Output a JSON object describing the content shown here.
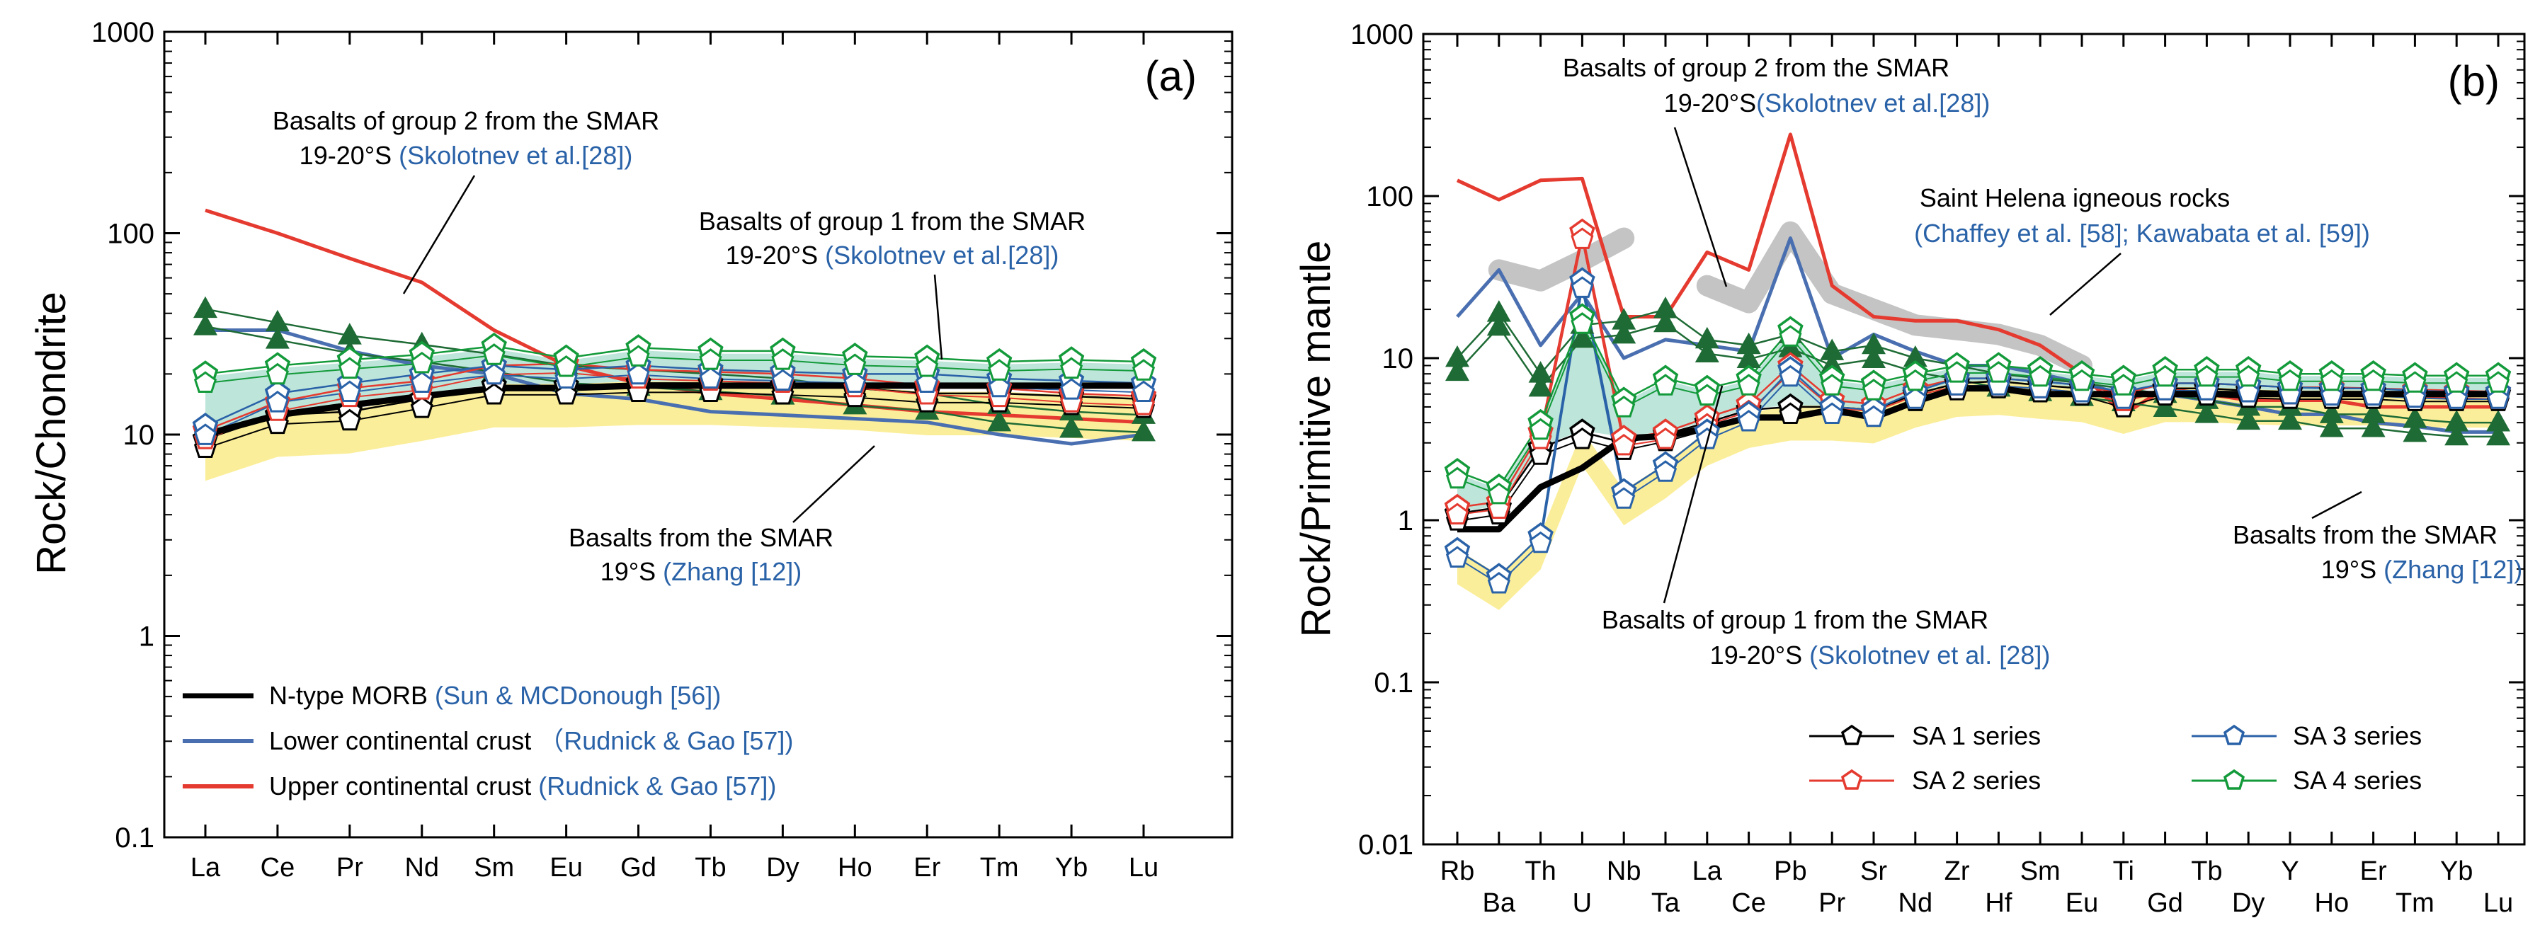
{
  "colors": {
    "black": "#000000",
    "blue": "#4a6fb0",
    "red": "#e53a2f",
    "green": "#139a3a",
    "darkgreen": "#1e6b35",
    "annot_blue": "#2a62a8",
    "fill_yellow": "#fbee9a",
    "fill_cyan": "#a8dccd",
    "fill_gray": "#c4c4c4"
  },
  "panel_a": {
    "label": "(a)",
    "ylabel": "Rock/Chondrite",
    "yticks": [
      "0.1",
      "1",
      "10",
      "100",
      "1000"
    ],
    "categories": [
      "La",
      "Ce",
      "Pr",
      "Nd",
      "Sm",
      "Eu",
      "Gd",
      "Tb",
      "Dy",
      "Ho",
      "Er",
      "Tm",
      "Yb",
      "Lu"
    ],
    "annotations": [
      {
        "l1": "Basalts of group 2 from the SMAR",
        "l2a": "19-20°S ",
        "l2b": "(Skolotnev et al.[28])"
      },
      {
        "l1": "Basalts of group 1 from the SMAR",
        "l2a": "19-20°S ",
        "l2b": "(Skolotnev et al.[28])"
      },
      {
        "l1": "Basalts from the SMAR",
        "l2a": "19°S ",
        "l2b": "(Zhang [12])"
      }
    ],
    "legend": [
      {
        "name": "N-type MORB ",
        "ref": "(Sun & MCDonough [56])"
      },
      {
        "name": "Lower continental crust ",
        "ref": "（Rudnick & Gao [57])"
      },
      {
        "name": "Upper continental crust ",
        "ref": "(Rudnick & Gao [57])"
      }
    ]
  },
  "panel_b": {
    "label": "(b)",
    "ylabel": "Rock/Primitive mantle",
    "yticks": [
      "0.01",
      "0.1",
      "1",
      "10",
      "100",
      "1000"
    ],
    "categories": [
      "Rb",
      "Ba",
      "Th",
      "U",
      "Nb",
      "Ta",
      "La",
      "Ce",
      "Pb",
      "Pr",
      "Sr",
      "Nd",
      "Zr",
      "Hf",
      "Sm",
      "Eu",
      "Ti",
      "Gd",
      "Tb",
      "Dy",
      "Y",
      "Ho",
      "Er",
      "Tm",
      "Yb",
      "Lu"
    ],
    "annotations": [
      {
        "l1": "Basalts of group 2 from the SMAR",
        "l2a": "19-20°S",
        "l2b": "(Skolotnev et al.[28])"
      },
      {
        "l1": "Saint Helena igneous rocks",
        "l2a": "",
        "l2b": "(Chaffey et al. [58]; Kawabata et al. [59])"
      },
      {
        "l1": "Basalts of group 1 from the SMAR",
        "l2a": "19-20°S ",
        "l2b": "(Skolotnev et al. [28])"
      },
      {
        "l1": "Basalts from the SMAR",
        "l2a": "19°S ",
        "l2b": "(Zhang [12])"
      }
    ],
    "legend": [
      "SA 1 series",
      "SA 2 series",
      "SA 3 series",
      "SA 4 series"
    ]
  },
  "chart_data": [
    {
      "type": "line",
      "title": "(a)",
      "xlabel": "",
      "ylabel": "Rock/Chondrite",
      "yscale": "log",
      "ylim": [
        0.1,
        1000
      ],
      "categories": [
        "La",
        "Ce",
        "Pr",
        "Nd",
        "Sm",
        "Eu",
        "Gd",
        "Tb",
        "Dy",
        "Ho",
        "Er",
        "Tm",
        "Yb",
        "Lu"
      ],
      "series": [
        {
          "name": "N-type MORB",
          "role": "reference",
          "values": [
            10,
            12.5,
            14,
            15.5,
            17,
            17,
            17.5,
            17.5,
            17.5,
            17.5,
            17.5,
            17.5,
            17.5,
            17.5
          ]
        },
        {
          "name": "Lower continental crust",
          "role": "reference",
          "values": [
            33,
            33,
            26,
            22,
            20,
            16,
            15,
            13,
            12.5,
            12,
            11.5,
            10,
            9,
            10
          ]
        },
        {
          "name": "Upper continental crust",
          "role": "reference",
          "values": [
            130,
            100,
            75,
            57,
            33,
            22,
            18,
            16,
            15,
            14,
            13,
            12.5,
            12,
            11.5
          ]
        },
        {
          "name": "Basalts of group 1 from the SMAR (green triangles)",
          "role": "reference",
          "values": [
            42,
            36,
            31,
            28,
            25,
            22,
            21,
            20,
            19,
            17,
            16,
            14,
            13,
            12.5
          ]
        },
        {
          "name": "SA 1 series",
          "values": [
            9.5,
            12.5,
            13,
            15,
            17.5,
            17.5,
            18,
            18,
            17.5,
            17,
            16,
            16,
            15.5,
            15
          ]
        },
        {
          "name": "SA 2 series",
          "values": [
            10.5,
            14.5,
            17,
            18.5,
            22,
            22.5,
            21,
            20.5,
            20,
            19,
            17.5,
            17,
            16,
            15.5
          ]
        },
        {
          "name": "SA 3 series",
          "values": [
            11,
            16,
            18,
            20,
            22,
            21,
            22,
            21,
            20.5,
            20,
            20,
            19,
            18.5,
            18
          ]
        },
        {
          "name": "SA 4 series",
          "values": [
            20,
            22,
            23.5,
            25,
            27.5,
            24,
            27,
            26,
            26,
            24.5,
            24,
            23,
            23.5,
            23
          ]
        }
      ]
    },
    {
      "type": "line",
      "title": "(b)",
      "xlabel": "",
      "ylabel": "Rock/Primitive mantle",
      "yscale": "log",
      "ylim": [
        0.01,
        1000
      ],
      "categories": [
        "Rb",
        "Ba",
        "Th",
        "U",
        "Nb",
        "Ta",
        "La",
        "Ce",
        "Pb",
        "Pr",
        "Sr",
        "Nd",
        "Zr",
        "Hf",
        "Sm",
        "Eu",
        "Ti",
        "Gd",
        "Tb",
        "Dy",
        "Y",
        "Ho",
        "Er",
        "Tm",
        "Yb",
        "Lu"
      ],
      "series": [
        {
          "name": "N-type MORB",
          "role": "reference",
          "values": [
            0.88,
            0.88,
            1.6,
            2.1,
            3.2,
            3.3,
            3.7,
            4.3,
            4.3,
            4.8,
            4.3,
            5.4,
            6.5,
            6.5,
            6,
            6,
            6,
            6,
            6,
            6,
            6,
            6,
            6,
            6,
            6,
            6
          ]
        },
        {
          "name": "Lower continental crust",
          "role": "reference",
          "values": [
            18,
            35,
            12,
            25,
            10,
            13,
            12,
            11,
            55,
            10,
            14,
            11,
            9,
            9,
            8,
            7,
            6,
            6,
            5.5,
            5,
            4.5,
            4.5,
            4,
            3.8,
            3.5,
            3.5
          ]
        },
        {
          "name": "Upper continental crust",
          "role": "reference",
          "values": [
            125,
            95,
            125,
            128,
            18,
            18,
            45,
            35,
            240,
            28,
            18,
            17,
            17,
            15,
            12,
            8,
            4.5,
            6.5,
            6,
            5.5,
            5.5,
            5.5,
            5,
            5,
            5,
            5
          ]
        },
        {
          "name": "Basalts of group 1 from the SMAR (green triangles)",
          "role": "reference",
          "values": [
            10,
            19,
            8,
            16,
            17,
            20,
            13,
            12,
            14,
            11,
            12,
            10,
            9,
            8,
            7.5,
            7,
            6.5,
            6,
            5.5,
            5,
            5,
            4.5,
            4.5,
            4.2,
            4,
            4
          ]
        },
        {
          "name": "SA 1 series",
          "values": [
            1.1,
            1.2,
            2.8,
            3.5,
            3,
            3.4,
            4,
            4.8,
            5,
            5,
            4.8,
            6,
            7,
            7.2,
            6.8,
            6.5,
            5.5,
            6.5,
            6.5,
            6.3,
            6.2,
            6.2,
            6.2,
            6,
            6,
            6
          ]
        },
        {
          "name": "SA 2 series",
          "values": [
            1.2,
            1.3,
            3.5,
            60,
            3.2,
            3.5,
            4.3,
            5.2,
            9,
            5.5,
            5.2,
            6.5,
            7.5,
            7.5,
            7.2,
            6.8,
            6,
            7,
            7,
            6.8,
            6.6,
            6.6,
            6.5,
            6.4,
            6.3,
            6.2
          ]
        },
        {
          "name": "SA 3 series",
          "values": [
            0.65,
            0.45,
            0.8,
            30,
            1.5,
            2.2,
            3.5,
            4.5,
            8.5,
            5,
            4.8,
            6.2,
            7.5,
            7.5,
            7.2,
            6.8,
            6.2,
            7,
            7,
            6.8,
            6.6,
            6.5,
            6.5,
            6.3,
            6.2,
            6.2
          ]
        },
        {
          "name": "SA 4 series",
          "values": [
            2,
            1.6,
            4,
            18,
            5.5,
            7.5,
            6.5,
            7.5,
            15,
            7.5,
            7,
            8,
            9,
            9,
            8.5,
            8,
            7.5,
            8.5,
            8.5,
            8.5,
            8,
            8,
            8,
            7.8,
            7.8,
            7.8
          ]
        }
      ]
    }
  ]
}
